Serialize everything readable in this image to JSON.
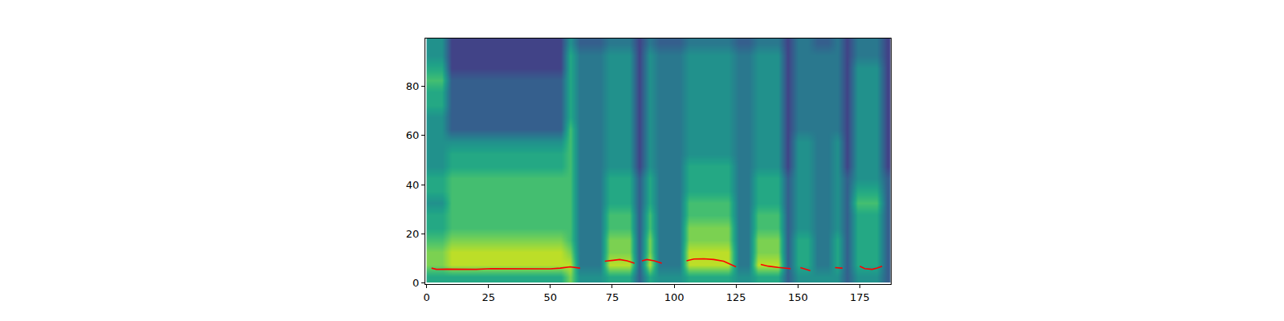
{
  "chart_data": {
    "type": "heatmap",
    "x": [
      2,
      6,
      10,
      14,
      18,
      22,
      26,
      30,
      34,
      38,
      42,
      46,
      50,
      54,
      58,
      62,
      66,
      70,
      74,
      78,
      82,
      86,
      90,
      94,
      98,
      102,
      106,
      110,
      114,
      118,
      122,
      126,
      130,
      134,
      138,
      142,
      146,
      150,
      154,
      158,
      162,
      166,
      170,
      174,
      178,
      182,
      186
    ],
    "y": [
      2.5,
      7.5,
      12.5,
      17.5,
      22.5,
      27.5,
      32.5,
      37.5,
      42.5,
      47.5,
      52.5,
      57.5,
      62.5,
      67.5,
      72.5,
      77.5,
      82.5,
      87.5,
      92.5,
      97.5
    ],
    "z": [
      [
        6,
        6,
        6,
        6,
        6,
        6,
        6,
        6,
        6,
        6,
        6,
        6,
        6,
        6,
        8,
        5,
        5,
        5,
        6,
        6,
        6,
        3,
        6,
        5,
        5,
        5,
        6,
        6,
        6,
        6,
        6,
        5,
        5,
        6,
        6,
        6,
        3,
        5,
        5,
        5,
        5,
        5,
        3,
        5,
        5,
        5,
        3
      ],
      [
        8,
        8,
        9,
        9,
        9,
        9,
        9,
        9,
        9,
        9,
        9,
        9,
        9,
        9,
        9,
        4,
        4,
        4,
        9,
        9,
        9,
        3,
        9,
        4,
        4,
        4,
        9,
        9,
        9,
        9,
        9,
        4,
        4,
        9,
        9,
        9,
        3,
        6,
        6,
        4,
        4,
        6,
        3,
        6,
        6,
        6,
        3
      ],
      [
        8,
        8,
        9,
        9,
        9,
        9,
        9,
        9,
        9,
        9,
        9,
        9,
        9,
        9,
        8,
        4,
        4,
        4,
        8,
        8,
        8,
        3,
        8,
        4,
        4,
        4,
        9,
        9,
        9,
        9,
        9,
        4,
        4,
        8,
        8,
        8,
        3,
        6,
        6,
        4,
        4,
        6,
        3,
        6,
        6,
        6,
        3
      ],
      [
        7,
        7,
        8,
        8,
        8,
        8,
        8,
        8,
        8,
        8,
        8,
        8,
        8,
        8,
        7,
        4,
        4,
        4,
        8,
        8,
        8,
        3,
        8,
        4,
        4,
        4,
        8,
        8,
        8,
        8,
        8,
        4,
        4,
        8,
        8,
        8,
        3,
        6,
        6,
        4,
        4,
        6,
        3,
        6,
        6,
        6,
        3
      ],
      [
        6,
        6,
        7,
        7,
        7,
        7,
        7,
        7,
        7,
        7,
        7,
        7,
        7,
        7,
        7,
        4,
        4,
        4,
        7,
        7,
        7,
        3,
        7,
        4,
        4,
        4,
        8,
        8,
        8,
        8,
        8,
        4,
        4,
        7,
        7,
        7,
        3,
        5,
        5,
        4,
        4,
        5,
        3,
        6,
        6,
        6,
        3
      ],
      [
        6,
        6,
        7,
        7,
        7,
        7,
        7,
        7,
        7,
        7,
        7,
        7,
        7,
        7,
        7,
        4,
        4,
        4,
        7,
        7,
        7,
        3,
        7,
        4,
        4,
        4,
        7,
        7,
        7,
        7,
        7,
        4,
        4,
        7,
        7,
        7,
        3,
        5,
        5,
        4,
        4,
        5,
        3,
        6,
        6,
        6,
        3
      ],
      [
        5,
        5,
        7,
        7,
        7,
        7,
        7,
        7,
        7,
        7,
        7,
        7,
        7,
        7,
        7,
        4,
        4,
        4,
        6,
        6,
        6,
        3,
        6,
        4,
        4,
        4,
        7,
        7,
        7,
        7,
        7,
        4,
        4,
        6,
        6,
        6,
        3,
        5,
        5,
        4,
        4,
        5,
        3,
        7,
        7,
        7,
        3
      ],
      [
        6,
        6,
        7,
        7,
        7,
        7,
        7,
        7,
        7,
        7,
        7,
        7,
        7,
        7,
        7,
        4,
        4,
        4,
        6,
        6,
        6,
        3,
        6,
        4,
        4,
        4,
        6,
        6,
        6,
        6,
        6,
        4,
        4,
        6,
        6,
        6,
        3,
        5,
        5,
        4,
        4,
        5,
        3,
        6,
        6,
        6,
        3
      ],
      [
        6,
        6,
        7,
        7,
        7,
        7,
        7,
        7,
        7,
        7,
        7,
        7,
        7,
        7,
        7,
        4,
        4,
        4,
        6,
        6,
        6,
        3,
        6,
        4,
        4,
        4,
        6,
        6,
        6,
        6,
        6,
        4,
        4,
        6,
        6,
        6,
        3,
        5,
        5,
        4,
        4,
        5,
        3,
        5,
        5,
        5,
        3
      ],
      [
        5,
        5,
        6,
        6,
        6,
        6,
        6,
        6,
        6,
        6,
        6,
        6,
        6,
        6,
        7,
        4,
        4,
        4,
        5,
        5,
        5,
        2,
        5,
        4,
        4,
        4,
        6,
        6,
        6,
        6,
        6,
        4,
        4,
        5,
        5,
        5,
        2,
        5,
        5,
        4,
        4,
        5,
        2,
        5,
        5,
        5,
        2
      ],
      [
        5,
        5,
        6,
        6,
        6,
        6,
        6,
        6,
        6,
        6,
        6,
        6,
        6,
        6,
        7,
        4,
        4,
        4,
        5,
        5,
        5,
        2,
        5,
        4,
        4,
        4,
        5,
        5,
        5,
        5,
        5,
        4,
        4,
        5,
        5,
        5,
        2,
        5,
        5,
        4,
        4,
        5,
        2,
        5,
        5,
        5,
        2
      ],
      [
        5,
        5,
        5,
        5,
        5,
        5,
        5,
        5,
        5,
        5,
        5,
        5,
        5,
        5,
        7,
        4,
        4,
        4,
        5,
        5,
        5,
        2,
        5,
        4,
        4,
        4,
        5,
        5,
        5,
        5,
        5,
        4,
        4,
        5,
        5,
        5,
        2,
        5,
        5,
        4,
        4,
        5,
        2,
        5,
        5,
        5,
        2
      ],
      [
        5,
        5,
        3,
        3,
        3,
        3,
        3,
        3,
        3,
        3,
        3,
        3,
        3,
        3,
        7,
        4,
        4,
        4,
        5,
        5,
        5,
        2,
        5,
        4,
        4,
        4,
        5,
        5,
        5,
        5,
        5,
        4,
        4,
        5,
        5,
        5,
        2,
        4,
        4,
        4,
        4,
        4,
        2,
        5,
        5,
        5,
        2
      ],
      [
        5,
        5,
        3,
        3,
        3,
        3,
        3,
        3,
        3,
        3,
        3,
        3,
        3,
        3,
        6,
        4,
        4,
        4,
        5,
        5,
        5,
        2,
        5,
        4,
        4,
        4,
        5,
        5,
        5,
        5,
        5,
        4,
        4,
        5,
        5,
        5,
        2,
        4,
        4,
        4,
        4,
        4,
        2,
        5,
        5,
        5,
        2
      ],
      [
        6,
        6,
        3,
        3,
        3,
        3,
        3,
        3,
        3,
        3,
        3,
        3,
        3,
        3,
        6,
        4,
        4,
        4,
        5,
        5,
        5,
        2,
        5,
        4,
        4,
        4,
        5,
        5,
        5,
        5,
        5,
        4,
        4,
        5,
        5,
        5,
        2,
        4,
        4,
        4,
        4,
        4,
        2,
        5,
        5,
        5,
        2
      ],
      [
        6,
        6,
        3,
        3,
        3,
        3,
        3,
        3,
        3,
        3,
        3,
        3,
        3,
        3,
        6,
        4,
        4,
        4,
        5,
        5,
        5,
        2,
        5,
        4,
        4,
        4,
        5,
        5,
        5,
        5,
        5,
        4,
        4,
        5,
        5,
        5,
        2,
        4,
        4,
        4,
        4,
        4,
        2,
        5,
        5,
        5,
        2
      ],
      [
        7,
        7,
        3,
        3,
        3,
        3,
        3,
        3,
        3,
        3,
        3,
        3,
        3,
        3,
        6,
        4,
        4,
        4,
        5,
        5,
        5,
        2,
        5,
        4,
        4,
        4,
        5,
        5,
        5,
        5,
        5,
        4,
        4,
        5,
        5,
        5,
        2,
        4,
        4,
        4,
        4,
        4,
        2,
        5,
        5,
        5,
        2
      ],
      [
        6,
        6,
        2,
        2,
        2,
        2,
        2,
        2,
        2,
        2,
        2,
        2,
        2,
        2,
        6,
        4,
        4,
        4,
        5,
        5,
        5,
        2,
        5,
        4,
        4,
        4,
        5,
        5,
        5,
        5,
        5,
        4,
        4,
        5,
        5,
        5,
        2,
        4,
        4,
        4,
        4,
        4,
        2,
        5,
        5,
        5,
        2
      ],
      [
        5,
        5,
        2,
        2,
        2,
        2,
        2,
        2,
        2,
        2,
        2,
        2,
        2,
        2,
        6,
        4,
        4,
        4,
        5,
        5,
        5,
        2,
        5,
        4,
        4,
        4,
        5,
        5,
        5,
        5,
        5,
        4,
        4,
        5,
        5,
        5,
        2,
        4,
        4,
        4,
        4,
        4,
        2,
        4,
        4,
        4,
        2
      ],
      [
        5,
        5,
        2,
        2,
        2,
        2,
        2,
        2,
        2,
        2,
        2,
        2,
        2,
        2,
        5,
        3,
        3,
        3,
        4,
        4,
        4,
        2,
        4,
        3,
        3,
        3,
        4,
        4,
        4,
        4,
        4,
        3,
        3,
        4,
        4,
        4,
        2,
        4,
        4,
        3,
        3,
        4,
        2,
        4,
        4,
        4,
        2
      ]
    ],
    "zlim": [
      0,
      10
    ],
    "series": [
      {
        "type": "line",
        "color": "#ff0000",
        "x": [
          2,
          4,
          8,
          14,
          20,
          26,
          32,
          38,
          44,
          50,
          54,
          58,
          62,
          66,
          72,
          75,
          78,
          81,
          84,
          86,
          87,
          89,
          92,
          95,
          100,
          105,
          108,
          112,
          116,
          120,
          123,
          125,
          130,
          135,
          138,
          142,
          147,
          149,
          151,
          153,
          155,
          160,
          165,
          168,
          172,
          175,
          177,
          180,
          182,
          184
        ],
        "values": [
          6.0,
          5.5,
          5.6,
          5.5,
          5.5,
          5.8,
          5.8,
          5.8,
          5.6,
          5.7,
          6.0,
          6.5,
          6.0,
          null,
          8.8,
          9.2,
          9.5,
          9.0,
          8.0,
          null,
          9.0,
          9.5,
          9.0,
          8.0,
          null,
          9.0,
          9.7,
          9.8,
          9.5,
          8.8,
          7.5,
          6.5,
          null,
          7.5,
          6.8,
          6.3,
          5.8,
          null,
          6.2,
          5.5,
          5.0,
          null,
          6.2,
          6.0,
          null,
          6.8,
          5.8,
          5.5,
          6.0,
          6.8
        ]
      }
    ],
    "xlim": [
      -0.5,
      187.5
    ],
    "ylim": [
      -0.5,
      99.5
    ],
    "xticks": [
      0,
      25,
      50,
      75,
      100,
      125,
      150,
      175
    ],
    "yticks": [
      0,
      20,
      40,
      60,
      80
    ],
    "grid": false
  }
}
